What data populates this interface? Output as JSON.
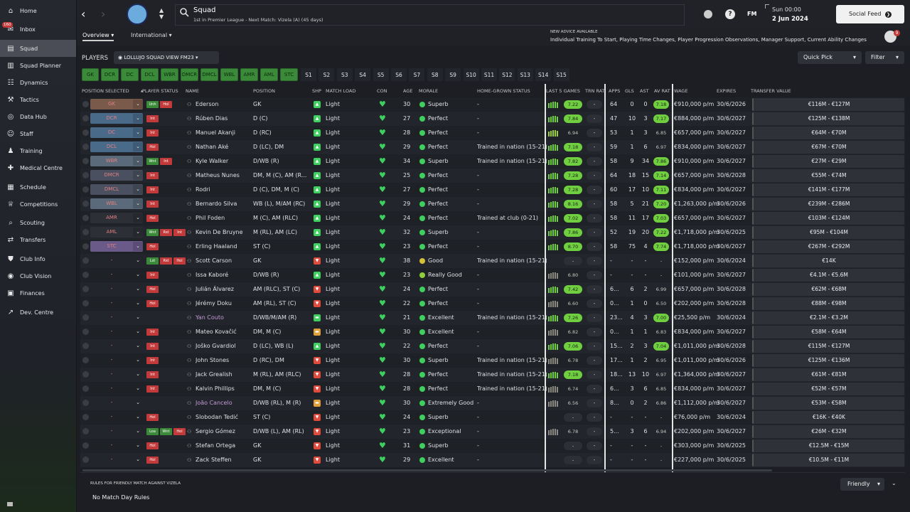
{
  "sidebar": {
    "items": [
      {
        "label": "Home",
        "icon": "home-icon"
      },
      {
        "label": "Inbox",
        "icon": "inbox-icon",
        "badge": "160"
      },
      {
        "label": "Squad",
        "icon": "squad-icon",
        "active": true
      },
      {
        "label": "Squad Planner",
        "icon": "planner-icon"
      },
      {
        "label": "Dynamics",
        "icon": "dynamics-icon"
      },
      {
        "label": "Tactics",
        "icon": "tactics-icon"
      },
      {
        "label": "Data Hub",
        "icon": "datahub-icon"
      },
      {
        "label": "Staff",
        "icon": "staff-icon"
      },
      {
        "label": "Training",
        "icon": "training-icon"
      },
      {
        "label": "Medical Centre",
        "icon": "medical-icon"
      },
      {
        "label": "Schedule",
        "icon": "schedule-icon"
      },
      {
        "label": "Competitions",
        "icon": "trophy-icon"
      },
      {
        "label": "Scouting",
        "icon": "scouting-icon"
      },
      {
        "label": "Transfers",
        "icon": "transfers-icon"
      },
      {
        "label": "Club Info",
        "icon": "shield-icon"
      },
      {
        "label": "Club Vision",
        "icon": "vision-icon"
      },
      {
        "label": "Finances",
        "icon": "finances-icon"
      },
      {
        "label": "Dev. Centre",
        "icon": "dev-icon"
      }
    ]
  },
  "header": {
    "title": "Squad",
    "subtitle": "1st in Premier League - Next Match: Vizela (A) (45 days)",
    "fm_label": "FM",
    "day": "Sun 00:00",
    "date": "2 Jun 2024",
    "social_feed": "Social Feed",
    "advice_title": "NEW ADVICE AVAILABLE",
    "advice_text": "Individual Training To Start, Playing Time Changes, Player Progression Observations, Manager Support, Current Ability Changes",
    "avatar_badge": "9"
  },
  "tabs": {
    "overview": "Overview",
    "international": "International"
  },
  "toolbar": {
    "players_label": "PLAYERS",
    "view_name": "LOLLUJO SQUAD VIEW FM23",
    "quick_pick": "Quick Pick",
    "filter": "Filter"
  },
  "position_buttons": [
    "GK",
    "DCR",
    "DC",
    "DCL",
    "WBR",
    "DMCR",
    "DMCL",
    "WBL",
    "AMR",
    "AML",
    "STC"
  ],
  "sub_buttons": [
    "S1",
    "S2",
    "S3",
    "S4",
    "S5",
    "S6",
    "S7",
    "S8",
    "S9",
    "S10",
    "S11",
    "S12",
    "S13",
    "S14",
    "S15"
  ],
  "columns": {
    "pos_sel": "POSITION SELECTED",
    "status": "PLAYER STATUS",
    "name": "NAME",
    "position": "POSITION",
    "shp": "SHP",
    "match_load": "MATCH LOAD",
    "con": "CON",
    "age": "AGE",
    "morale": "MORALE",
    "hg": "HOME-GROWN STATUS",
    "last5": "LAST 5 GAMES",
    "trn": "TRN RAT",
    "apps": "APPS",
    "gls": "GLS",
    "ast": "AST",
    "avrat": "AV RAT",
    "wage": "WAGE",
    "expires": "EXPIRES",
    "tv": "TRANSFER VALUE"
  },
  "players": [
    {
      "sel": "GK",
      "sel_color": "#7a5a4a",
      "status": [
        "Unh",
        "Hol"
      ],
      "name": "Ederson",
      "position": "GK",
      "shp": "up",
      "load": "Light",
      "age": "30",
      "morale": "Superb",
      "hg": "-",
      "last5": "7.22",
      "trn": "-",
      "apps": "64",
      "gls": "0",
      "ast": "0",
      "avrat": "7.18",
      "wage": "€910,000 p/m",
      "expires": "30/6/2026",
      "tv": "€116M - €127M"
    },
    {
      "sel": "DCR",
      "sel_color": "#4a6a8a",
      "status": [
        "Int"
      ],
      "name": "Rúben Dias",
      "position": "D (C)",
      "shp": "up",
      "load": "Light",
      "age": "27",
      "morale": "Perfect",
      "hg": "-",
      "last5": "7.84",
      "trn": "-",
      "apps": "47",
      "gls": "10",
      "ast": "3",
      "avrat": "7.17",
      "wage": "€884,000 p/m",
      "expires": "30/6/2027",
      "tv": "€125M - €138M"
    },
    {
      "sel": "DC",
      "sel_color": "#4a6a8a",
      "status": [
        "Int"
      ],
      "name": "Manuel Akanji",
      "position": "D (RC)",
      "shp": "up",
      "load": "Light",
      "age": "28",
      "morale": "Perfect",
      "hg": "-",
      "last5": "6.94",
      "trn": "-",
      "apps": "53",
      "gls": "1",
      "ast": "3",
      "avrat": "6.85",
      "wage": "€657,000 p/m",
      "expires": "30/6/2027",
      "tv": "€64M - €70M"
    },
    {
      "sel": "DCL",
      "sel_color": "#4a6a8a",
      "status": [
        "Hol"
      ],
      "name": "Nathan Aké",
      "position": "D (LC), DM",
      "shp": "up",
      "load": "Light",
      "age": "29",
      "morale": "Perfect",
      "hg": "Trained in nation (15-21)",
      "last5": "7.18",
      "trn": "-",
      "apps": "59",
      "gls": "1",
      "ast": "6",
      "avrat": "6.97",
      "wage": "€834,000 p/m",
      "expires": "30/6/2027",
      "tv": "€67M - €70M"
    },
    {
      "sel": "WBR",
      "sel_color": "#5a6a7a",
      "status": [
        "Wnt",
        "Int"
      ],
      "name": "Kyle Walker",
      "position": "D/WB (R)",
      "shp": "up",
      "load": "Light",
      "age": "34",
      "morale": "Superb",
      "hg": "Trained in nation (15-21)",
      "last5": "7.82",
      "trn": "-",
      "apps": "58",
      "gls": "9",
      "ast": "34",
      "avrat": "7.86",
      "wage": "€910,000 p/m",
      "expires": "30/6/2027",
      "tv": "€27M - €29M"
    },
    {
      "sel": "DMCR",
      "sel_color": "#4a5060",
      "status": [
        "Int"
      ],
      "name": "Matheus Nunes",
      "position": "DM, M (C), AM (R...",
      "shp": "up",
      "load": "Light",
      "age": "25",
      "morale": "Perfect",
      "hg": "-",
      "last5": "7.28",
      "trn": "-",
      "apps": "64",
      "gls": "18",
      "ast": "15",
      "avrat": "7.14",
      "wage": "€657,000 p/m",
      "expires": "30/6/2028",
      "tv": "€55M - €74M"
    },
    {
      "sel": "DMCL",
      "sel_color": "#4a5060",
      "status": [
        "Int"
      ],
      "name": "Rodri",
      "position": "D (C), DM, M (C)",
      "shp": "up",
      "load": "Light",
      "age": "27",
      "morale": "Perfect",
      "hg": "-",
      "last5": "7.28",
      "trn": "-",
      "apps": "60",
      "gls": "17",
      "ast": "10",
      "avrat": "7.11",
      "wage": "€834,000 p/m",
      "expires": "30/6/2027",
      "tv": "€141M - €177M"
    },
    {
      "sel": "WBL",
      "sel_color": "#5a6a7a",
      "status": [
        "Int"
      ],
      "name": "Bernardo Silva",
      "position": "WB (L), M/AM (RC)",
      "shp": "up",
      "load": "Light",
      "age": "29",
      "morale": "Perfect",
      "hg": "-",
      "last5": "8.16",
      "trn": "-",
      "apps": "58",
      "gls": "5",
      "ast": "21",
      "avrat": "7.20",
      "wage": "€1,263,000 p/m",
      "expires": "30/6/2026",
      "tv": "€239M - €286M"
    },
    {
      "sel": "AMR",
      "sel_color": "#2c2f36",
      "status": [
        "Hol"
      ],
      "name": "Phil Foden",
      "position": "M (C), AM (RLC)",
      "shp": "up",
      "load": "Light",
      "age": "24",
      "morale": "Perfect",
      "hg": "Trained at club (0-21)",
      "last5": "7.02",
      "trn": "-",
      "apps": "58",
      "gls": "11",
      "ast": "17",
      "avrat": "7.03",
      "wage": "€657,000 p/m",
      "expires": "30/6/2027",
      "tv": "€103M - €124M"
    },
    {
      "sel": "AML",
      "sel_color": "#2c2f36",
      "status": [
        "Wnt",
        "Rst",
        "Int"
      ],
      "name": "Kevin De Bruyne",
      "position": "M (RL), AM (LC)",
      "shp": "up",
      "load": "Light",
      "age": "32",
      "morale": "Superb",
      "hg": "-",
      "last5": "7.86",
      "trn": "-",
      "apps": "52",
      "gls": "19",
      "ast": "20",
      "avrat": "7.22",
      "wage": "€1,718,000 p/m",
      "expires": "30/6/2025",
      "tv": "€95M - €104M"
    },
    {
      "sel": "STC",
      "sel_color": "#6a5a8a",
      "status": [
        "Hol"
      ],
      "name": "Erling Haaland",
      "position": "ST (C)",
      "shp": "up",
      "load": "Light",
      "age": "23",
      "morale": "Perfect",
      "hg": "-",
      "last5": "8.70",
      "trn": "-",
      "apps": "58",
      "gls": "75",
      "ast": "4",
      "avrat": "7.74",
      "wage": "€1,718,000 p/m",
      "expires": "30/6/2027",
      "tv": "€267M - €292M"
    },
    {
      "sel": "-",
      "sel_color": "",
      "status": [
        "Lst",
        "Rst",
        "Hol"
      ],
      "name": "Scott Carson",
      "position": "GK",
      "shp": "down",
      "load": "Light",
      "age": "38",
      "morale": "Good",
      "hg": "Trained in nation (15-21)",
      "last5": "-",
      "trn": "-",
      "apps": "-",
      "gls": "-",
      "ast": "-",
      "avrat": "-",
      "wage": "€152,000 p/m",
      "expires": "30/6/2024",
      "tv": "€14K"
    },
    {
      "sel": "-",
      "sel_color": "",
      "status": [
        "Int"
      ],
      "name": "Issa Kaboré",
      "position": "D/WB (R)",
      "shp": "up",
      "load": "Light",
      "age": "23",
      "morale": "Really Good",
      "hg": "-",
      "last5": "6.80",
      "trn": "-",
      "apps": "-",
      "gls": "-",
      "ast": "-",
      "avrat": "-",
      "wage": "€101,000 p/m",
      "expires": "30/6/2027",
      "tv": "€4.1M - €5.6M"
    },
    {
      "sel": "-",
      "sel_color": "",
      "status": [
        "Hol"
      ],
      "name": "Julián Álvarez",
      "position": "AM (RLC), ST (C)",
      "shp": "down",
      "load": "Light",
      "age": "24",
      "morale": "Perfect",
      "hg": "-",
      "last5": "7.42",
      "trn": "-",
      "apps": "6...",
      "gls": "6",
      "ast": "2",
      "avrat": "6.99",
      "wage": "€657,000 p/m",
      "expires": "30/6/2028",
      "tv": "€62M - €68M"
    },
    {
      "sel": "-",
      "sel_color": "",
      "status": [
        "Hol"
      ],
      "name": "Jérémy Doku",
      "position": "AM (RL), ST (C)",
      "shp": "down",
      "load": "Light",
      "age": "22",
      "morale": "Perfect",
      "hg": "-",
      "last5": "6.60",
      "trn": "-",
      "apps": "0...",
      "gls": "1",
      "ast": "0",
      "avrat": "6.50",
      "wage": "€202,000 p/m",
      "expires": "30/6/2028",
      "tv": "€88M - €98M"
    },
    {
      "sel": "-",
      "sel_color": "",
      "status": [],
      "name": "Yan Couto",
      "position": "D/WB/M/AM (R)",
      "shp": "flat",
      "load": "Light",
      "age": "21",
      "morale": "Excellent",
      "hg": "Trained in nation (15-21)",
      "last5": "7.26",
      "trn": "-",
      "apps": "23...",
      "gls": "4",
      "ast": "3",
      "avrat": "7.00",
      "wage": "€25,500 p/m",
      "expires": "30/6/2024",
      "tv": "€2.1M - €3.2M",
      "name_color": "#c79ad9"
    },
    {
      "sel": "-",
      "sel_color": "",
      "status": [
        "Int"
      ],
      "name": "Mateo Kovačić",
      "position": "DM, M (C)",
      "shp": "mid",
      "load": "Light",
      "age": "30",
      "morale": "Excellent",
      "hg": "-",
      "last5": "6.82",
      "trn": "-",
      "apps": "0...",
      "gls": "1",
      "ast": "1",
      "avrat": "6.83",
      "wage": "€834,000 p/m",
      "expires": "30/6/2027",
      "tv": "€58M - €64M"
    },
    {
      "sel": "-",
      "sel_color": "",
      "status": [
        "Int"
      ],
      "name": "Joško Gvardiol",
      "position": "D (LC), WB (L)",
      "shp": "up",
      "load": "Light",
      "age": "22",
      "morale": "Perfect",
      "hg": "-",
      "last5": "7.06",
      "trn": "-",
      "apps": "15...",
      "gls": "2",
      "ast": "3",
      "avrat": "7.04",
      "wage": "€1,011,000 p/m",
      "expires": "30/6/2028",
      "tv": "€115M - €127M"
    },
    {
      "sel": "-",
      "sel_color": "",
      "status": [
        "Int"
      ],
      "name": "John Stones",
      "position": "D (RC), DM",
      "shp": "down",
      "load": "Light",
      "age": "30",
      "morale": "Superb",
      "hg": "Trained in nation (15-21)",
      "last5": "6.78",
      "trn": "-",
      "apps": "17...",
      "gls": "1",
      "ast": "2",
      "avrat": "6.95",
      "wage": "€1,011,000 p/m",
      "expires": "30/6/2026",
      "tv": "€125M - €136M"
    },
    {
      "sel": "-",
      "sel_color": "",
      "status": [
        "Int"
      ],
      "name": "Jack Grealish",
      "position": "M (RL), AM (RLC)",
      "shp": "down",
      "load": "Light",
      "age": "28",
      "morale": "Perfect",
      "hg": "Trained in nation (15-21)",
      "last5": "7.18",
      "trn": "-",
      "apps": "18...",
      "gls": "13",
      "ast": "10",
      "avrat": "6.97",
      "wage": "€1,364,000 p/m",
      "expires": "30/6/2027",
      "tv": "€61M - €81M"
    },
    {
      "sel": "-",
      "sel_color": "",
      "status": [
        "Int"
      ],
      "name": "Kalvin Phillips",
      "position": "DM, M (C)",
      "shp": "down",
      "load": "Light",
      "age": "28",
      "morale": "Perfect",
      "hg": "Trained in nation (15-21)",
      "last5": "6.74",
      "trn": "-",
      "apps": "6...",
      "gls": "3",
      "ast": "6",
      "avrat": "6.85",
      "wage": "€834,000 p/m",
      "expires": "30/6/2027",
      "tv": "€52M - €57M"
    },
    {
      "sel": "-",
      "sel_color": "",
      "status": [],
      "name": "João Cancelo",
      "position": "D/WB (RL), M (R)",
      "shp": "mid",
      "load": "Light",
      "age": "30",
      "morale": "Extremely Good",
      "hg": "-",
      "last5": "6.56",
      "trn": "-",
      "apps": "8...",
      "gls": "0",
      "ast": "2",
      "avrat": "6.86",
      "wage": "€1,112,000 p/m",
      "expires": "30/6/2027",
      "tv": "€53M - €58M",
      "name_color": "#c79ad9"
    },
    {
      "sel": "-",
      "sel_color": "",
      "status": [
        "Hol"
      ],
      "name": "Slobodan Tedić",
      "position": "ST (C)",
      "shp": "down",
      "load": "Light",
      "age": "24",
      "morale": "Superb",
      "hg": "-",
      "last5": "-",
      "trn": "-",
      "apps": "-",
      "gls": "-",
      "ast": "-",
      "avrat": "-",
      "wage": "€76,000 p/m",
      "expires": "30/6/2024",
      "tv": "€16K - €40K"
    },
    {
      "sel": "-",
      "sel_color": "",
      "status": [
        "Loa",
        "Wnt",
        "Hol"
      ],
      "name": "Sergio Gómez",
      "position": "D/WB (L), AM (RL)",
      "shp": "down",
      "load": "Light",
      "age": "23",
      "morale": "Exceptional",
      "hg": "-",
      "last5": "6.78",
      "trn": "-",
      "apps": "5...",
      "gls": "3",
      "ast": "6",
      "avrat": "6.94",
      "wage": "€202,000 p/m",
      "expires": "30/6/2027",
      "tv": "€26M - €32M"
    },
    {
      "sel": "-",
      "sel_color": "",
      "status": [
        "Hol"
      ],
      "name": "Stefan Ortega",
      "position": "GK",
      "shp": "down",
      "load": "Light",
      "age": "31",
      "morale": "Superb",
      "hg": "-",
      "last5": "-",
      "trn": "-",
      "apps": "-",
      "gls": "-",
      "ast": "-",
      "avrat": "-",
      "wage": "€303,000 p/m",
      "expires": "30/6/2025",
      "tv": "€12.5M - €15M"
    },
    {
      "sel": "-",
      "sel_color": "",
      "status": [
        "Hol"
      ],
      "name": "Zack Steffen",
      "position": "GK",
      "shp": "down",
      "load": "Light",
      "age": "29",
      "morale": "Excellent",
      "hg": "-",
      "last5": "-",
      "trn": "-",
      "apps": "-",
      "gls": "-",
      "ast": "-",
      "avrat": "-",
      "wage": "€227,000 p/m",
      "expires": "30/6/2025",
      "tv": "€10.5M - €11M"
    }
  ],
  "footer": {
    "rules_title": "RULES FOR FRIENDLY MATCH AGAINST VIZELA",
    "rules_text": "No Match Day Rules",
    "select": "Friendly"
  }
}
